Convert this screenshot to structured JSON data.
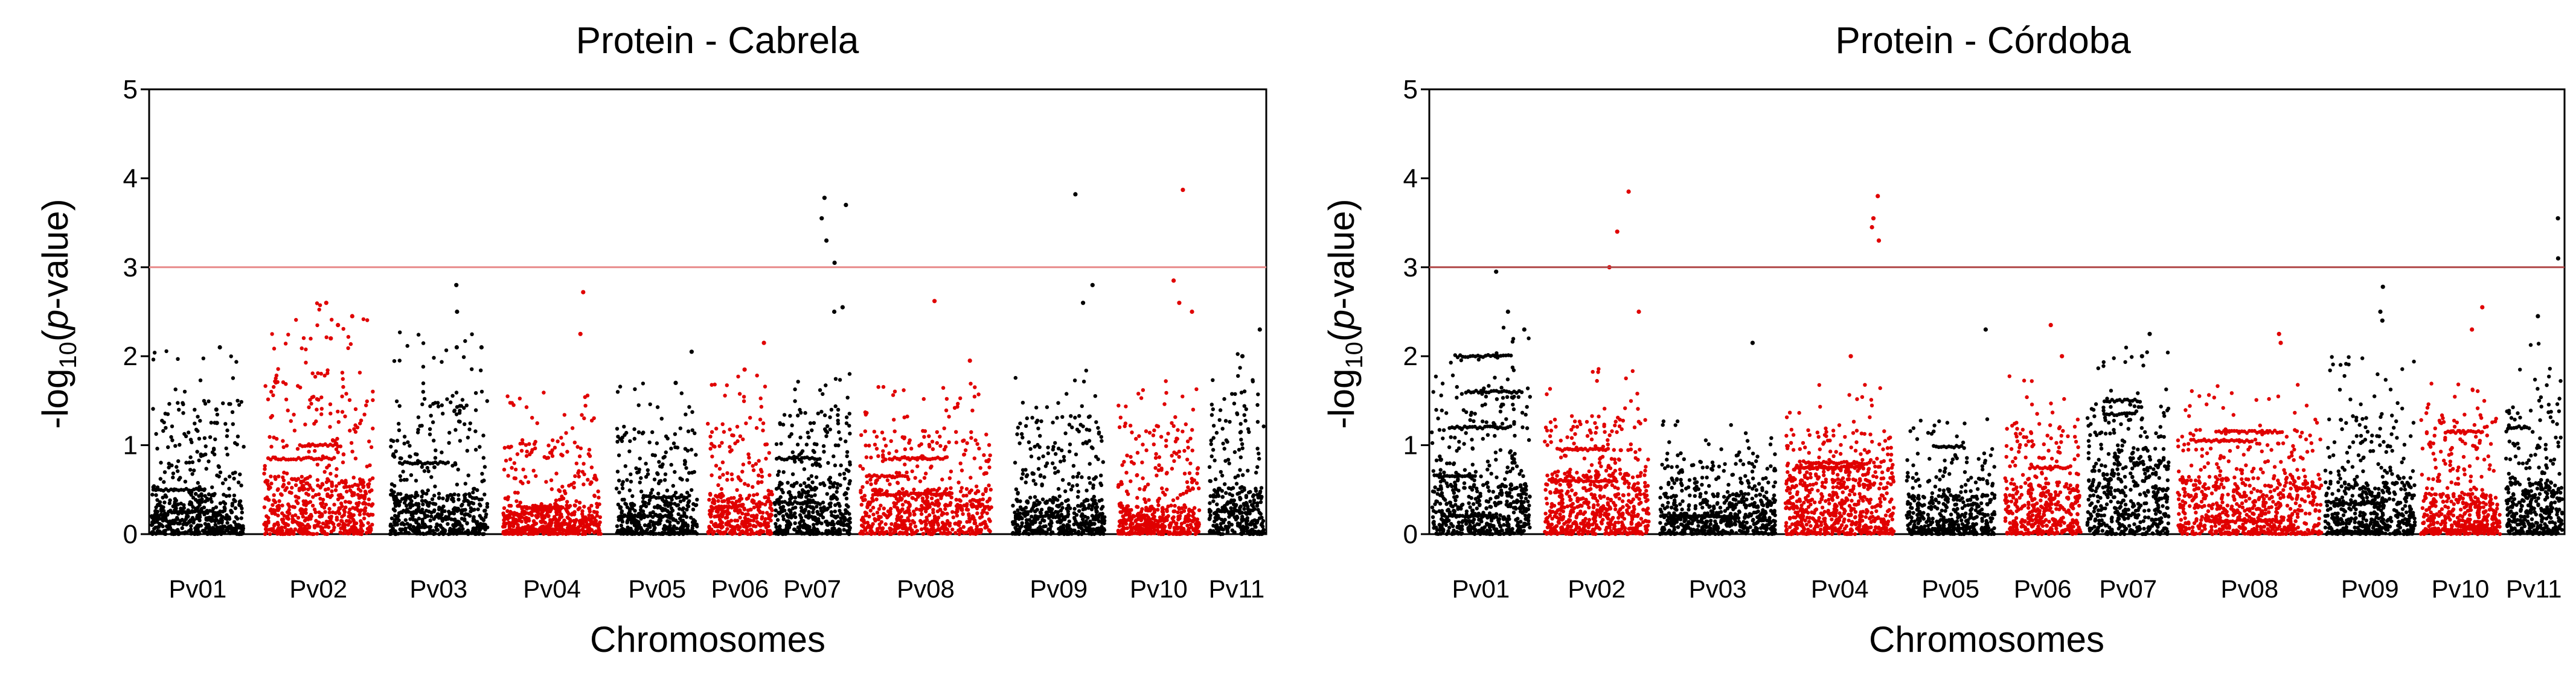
{
  "chart_data": [
    {
      "type": "scatter",
      "subtype": "manhattan",
      "title": "Protein - Cabrela",
      "xlabel": "Chromosomes",
      "ylabel": {
        "pre": "-log",
        "sub": "10",
        "open": "(",
        "italic": "p",
        "post": "-value)"
      },
      "ylim": [
        0,
        5
      ],
      "yticks": [
        0,
        1,
        2,
        3,
        4,
        5
      ],
      "threshold": {
        "value": 3,
        "color": "#e88a8a"
      },
      "grid": false,
      "colors": {
        "odd": "#000000",
        "even": "#e00000"
      },
      "chromosomes": [
        {
          "name": "Pv01",
          "x": 0.0,
          "w": 0.083,
          "base": 0.35,
          "maxv": 2.15,
          "n": 540,
          "bands": [
            0.25,
            0.5
          ],
          "peaks": [
            1.25,
            1.4,
            2.1
          ]
        },
        {
          "name": "Pv02",
          "x": 0.101,
          "w": 0.098,
          "base": 0.5,
          "maxv": 2.6,
          "n": 620,
          "bands": [
            0.85,
            1.0
          ],
          "peaks": [
            2.35,
            2.6,
            2.45,
            2.2
          ]
        },
        {
          "name": "Pv03",
          "x": 0.214,
          "w": 0.088,
          "base": 0.35,
          "maxv": 2.3,
          "n": 520,
          "bands": [
            0.25,
            0.8
          ],
          "peaks": [
            2.8,
            2.5,
            2.1,
            2.1
          ]
        },
        {
          "name": "Pv04",
          "x": 0.316,
          "w": 0.088,
          "base": 0.25,
          "maxv": 1.6,
          "n": 560,
          "bands": [
            0.3,
            0.05
          ],
          "peaks": [
            2.72,
            2.25
          ]
        },
        {
          "name": "Pv05",
          "x": 0.418,
          "w": 0.073,
          "base": 0.3,
          "maxv": 1.7,
          "n": 420,
          "bands": [
            0.42,
            0.2
          ],
          "peaks": [
            2.05,
            1.7
          ]
        },
        {
          "name": "Pv06",
          "x": 0.5,
          "w": 0.058,
          "base": 0.35,
          "maxv": 1.8,
          "n": 360,
          "bands": [
            0.3
          ],
          "peaks": [
            2.15,
            1.85
          ]
        },
        {
          "name": "Pv07",
          "x": 0.56,
          "w": 0.068,
          "base": 0.45,
          "maxv": 2.0,
          "n": 440,
          "bands": [
            0.85,
            0.35
          ],
          "peaks": [
            3.05,
            3.3,
            3.55,
            3.7,
            3.78,
            2.55,
            2.5
          ]
        },
        {
          "name": "Pv08",
          "x": 0.637,
          "w": 0.118,
          "base": 0.4,
          "maxv": 1.7,
          "n": 640,
          "bands": [
            0.85,
            0.65,
            0.45
          ],
          "peaks": [
            2.62,
            1.95
          ]
        },
        {
          "name": "Pv09",
          "x": 0.774,
          "w": 0.083,
          "base": 0.3,
          "maxv": 1.9,
          "n": 500,
          "bands": [
            0.2
          ],
          "peaks": [
            3.82,
            2.6,
            2.8
          ]
        },
        {
          "name": "Pv10",
          "x": 0.869,
          "w": 0.073,
          "base": 0.25,
          "maxv": 1.8,
          "n": 480,
          "bands": [
            0.1
          ],
          "peaks": [
            3.87,
            2.85,
            2.6,
            2.5
          ]
        },
        {
          "name": "Pv11",
          "x": 0.951,
          "w": 0.049,
          "base": 0.4,
          "maxv": 2.3,
          "n": 340,
          "bands": [
            0.25
          ],
          "peaks": [
            2.3,
            2.0
          ]
        }
      ]
    },
    {
      "type": "scatter",
      "subtype": "manhattan",
      "title": "Protein - Córdoba",
      "xlabel": "Chromosomes",
      "ylabel": {
        "pre": "-log",
        "sub": "10",
        "open": "(",
        "italic": "p",
        "post": "-value)"
      },
      "ylim": [
        0,
        5
      ],
      "yticks": [
        0,
        1,
        2,
        3,
        4,
        5
      ],
      "threshold": {
        "value": 3,
        "color": "#b04848"
      },
      "grid": false,
      "colors": {
        "odd": "#000000",
        "even": "#e00000"
      },
      "chromosomes": [
        {
          "name": "Pv01",
          "x": 0.0,
          "w": 0.087,
          "base": 0.45,
          "maxv": 2.4,
          "n": 560,
          "bands": [
            1.2,
            1.6,
            2.0,
            0.65,
            0.2
          ],
          "peaks": [
            2.95,
            2.5,
            2.3
          ]
        },
        {
          "name": "Pv02",
          "x": 0.1,
          "w": 0.092,
          "base": 0.55,
          "maxv": 1.9,
          "n": 620,
          "bands": [
            0.95,
            0.6
          ],
          "peaks": [
            3.85,
            3.4,
            3.0,
            2.5
          ]
        },
        {
          "name": "Pv03",
          "x": 0.202,
          "w": 0.102,
          "base": 0.35,
          "maxv": 1.3,
          "n": 560,
          "bands": [
            0.2
          ],
          "peaks": [
            2.15
          ]
        },
        {
          "name": "Pv04",
          "x": 0.313,
          "w": 0.096,
          "base": 0.6,
          "maxv": 1.7,
          "n": 660,
          "bands": [
            0.8,
            0.75
          ],
          "peaks": [
            3.8,
            3.55,
            3.45,
            3.3,
            2.0
          ]
        },
        {
          "name": "Pv05",
          "x": 0.42,
          "w": 0.078,
          "base": 0.35,
          "maxv": 1.3,
          "n": 440,
          "bands": [
            0.98,
            0.05
          ],
          "peaks": [
            2.3
          ]
        },
        {
          "name": "Pv06",
          "x": 0.507,
          "w": 0.067,
          "base": 0.45,
          "maxv": 1.8,
          "n": 420,
          "bands": [
            0.75
          ],
          "peaks": [
            2.35,
            2.0
          ]
        },
        {
          "name": "Pv07",
          "x": 0.58,
          "w": 0.072,
          "base": 0.75,
          "maxv": 2.1,
          "n": 480,
          "bands": [
            1.5,
            1.35
          ],
          "peaks": [
            2.25,
            2.0
          ]
        },
        {
          "name": "Pv08",
          "x": 0.66,
          "w": 0.127,
          "base": 0.5,
          "maxv": 1.7,
          "n": 700,
          "bands": [
            1.15,
            1.05,
            0.15
          ],
          "peaks": [
            2.25,
            2.15
          ]
        },
        {
          "name": "Pv09",
          "x": 0.79,
          "w": 0.08,
          "base": 0.45,
          "maxv": 2.0,
          "n": 520,
          "bands": [
            0.35
          ],
          "peaks": [
            2.78,
            2.5,
            2.4
          ]
        },
        {
          "name": "Pv10",
          "x": 0.875,
          "w": 0.07,
          "base": 0.35,
          "maxv": 1.9,
          "n": 460,
          "bands": [
            1.15,
            0.05
          ],
          "peaks": [
            2.55,
            2.3
          ]
        },
        {
          "name": "Pv11",
          "x": 0.95,
          "w": 0.05,
          "base": 0.45,
          "maxv": 2.2,
          "n": 360,
          "bands": [
            1.2,
            0.15
          ],
          "peaks": [
            3.55,
            3.1,
            2.45
          ]
        }
      ]
    }
  ]
}
